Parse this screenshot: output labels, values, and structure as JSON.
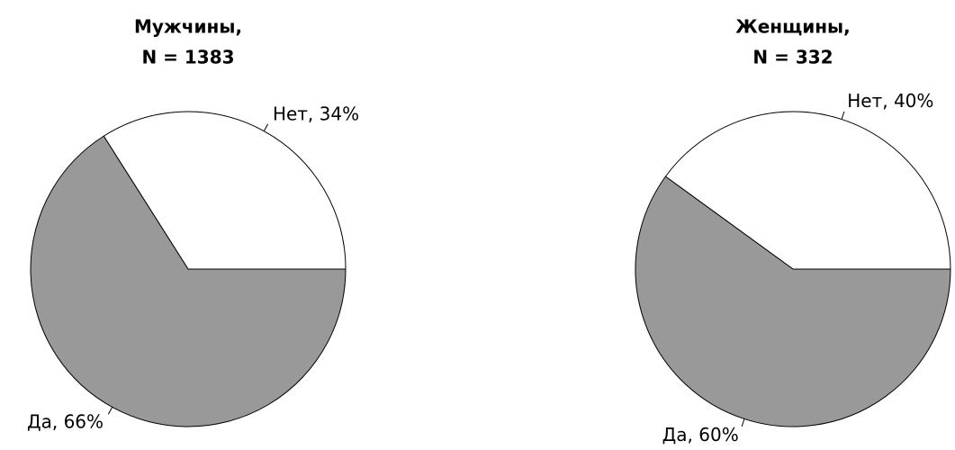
{
  "chart_data": [
    {
      "type": "pie",
      "title": "Мужчины,",
      "subtitle": "N = 1383",
      "values": [
        34,
        66
      ],
      "value_labels": [
        "Нет, 34%",
        "Да, 66%"
      ],
      "colors": [
        "#ffffff",
        "#999999"
      ]
    },
    {
      "type": "pie",
      "title": "Женщины,",
      "subtitle": "N = 332",
      "values": [
        40,
        60
      ],
      "value_labels": [
        "Нет, 40%",
        "Да, 60%"
      ],
      "colors": [
        "#ffffff",
        "#999999"
      ]
    }
  ]
}
